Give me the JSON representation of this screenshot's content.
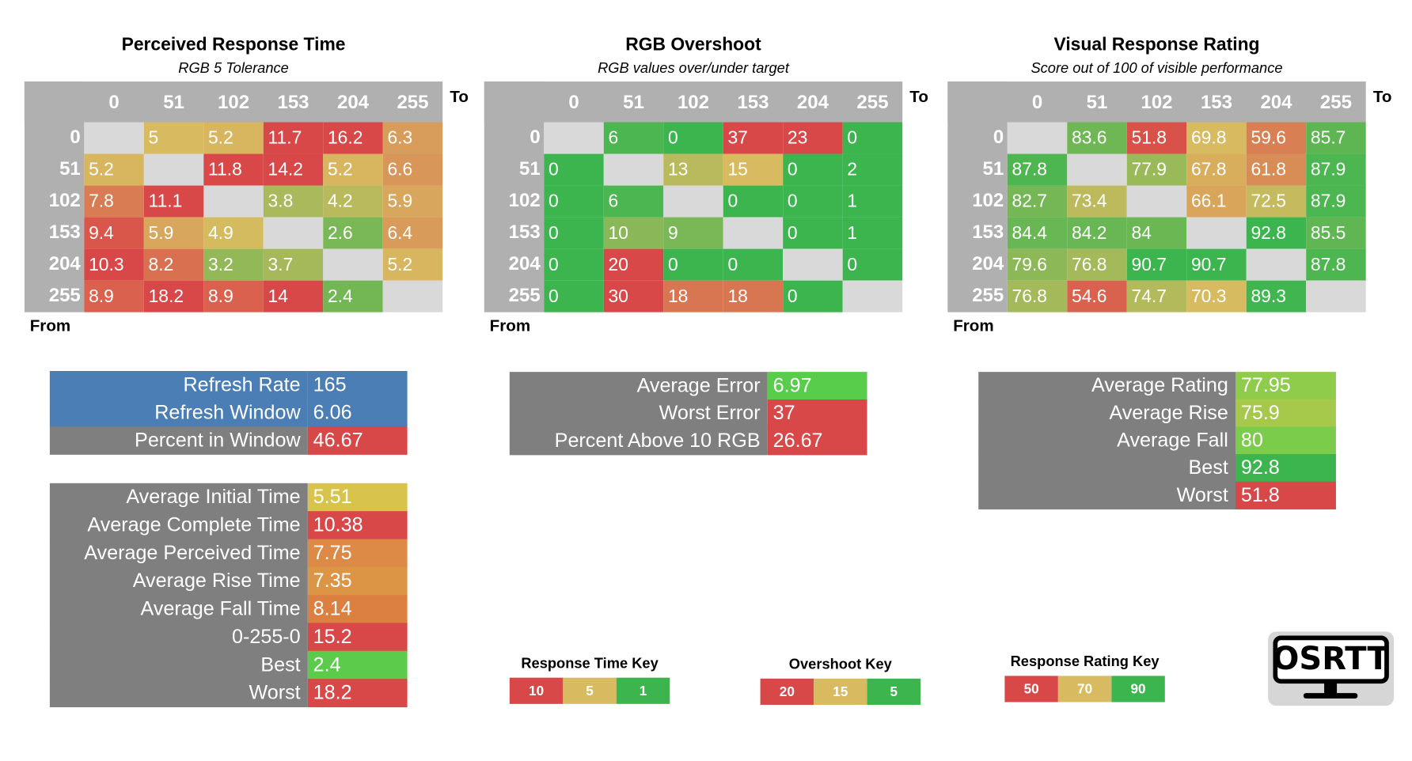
{
  "heatmaps": [
    {
      "title": "Perceived Response Time",
      "subtitle": "RGB 5 Tolerance",
      "to_label": "To",
      "from_label": "From",
      "columns": [
        0,
        51,
        102,
        153,
        204,
        255
      ],
      "row_labels": [
        0,
        51,
        102,
        153,
        204,
        255
      ],
      "values": [
        [
          null,
          5,
          5.2,
          11.7,
          16.2,
          6.3
        ],
        [
          5.2,
          null,
          11.8,
          14.2,
          5.2,
          6.6
        ],
        [
          7.8,
          11.1,
          null,
          3.8,
          4.2,
          5.9
        ],
        [
          9.4,
          5.9,
          4.9,
          null,
          2.6,
          6.4
        ],
        [
          10.3,
          8.2,
          3.2,
          3.7,
          null,
          5.2
        ],
        [
          8.9,
          18.2,
          8.9,
          14,
          2.4,
          null
        ]
      ],
      "key": {
        "title": "Response Time Key",
        "stops": [
          {
            "value": 10,
            "color": "#d94848"
          },
          {
            "value": 5,
            "color": "#d8bb60"
          },
          {
            "value": 1,
            "color": "#3cb54f"
          }
        ]
      }
    },
    {
      "title": "RGB Overshoot",
      "subtitle": "RGB values over/under target",
      "to_label": "To",
      "from_label": "From",
      "columns": [
        0,
        51,
        102,
        153,
        204,
        255
      ],
      "row_labels": [
        0,
        51,
        102,
        153,
        204,
        255
      ],
      "values": [
        [
          null,
          6,
          0,
          37,
          23,
          0
        ],
        [
          0,
          null,
          13,
          15,
          0,
          2
        ],
        [
          0,
          6,
          null,
          0,
          0,
          1
        ],
        [
          0,
          10,
          9,
          null,
          0,
          1
        ],
        [
          0,
          20,
          0,
          0,
          null,
          0
        ],
        [
          0,
          30,
          18,
          18,
          0,
          null
        ]
      ],
      "key": {
        "title": "Overshoot Key",
        "stops": [
          {
            "value": 20,
            "color": "#d94848"
          },
          {
            "value": 15,
            "color": "#d8bb60"
          },
          {
            "value": 5,
            "color": "#3cb54f"
          }
        ]
      }
    },
    {
      "title": "Visual Response Rating",
      "subtitle": "Score out of 100 of visible performance",
      "to_label": "To",
      "from_label": "From",
      "columns": [
        0,
        51,
        102,
        153,
        204,
        255
      ],
      "row_labels": [
        0,
        51,
        102,
        153,
        204,
        255
      ],
      "values": [
        [
          null,
          83.6,
          51.8,
          69.8,
          59.6,
          85.7
        ],
        [
          87.8,
          null,
          77.9,
          67.8,
          61.8,
          87.9
        ],
        [
          82.7,
          73.4,
          null,
          66.1,
          72.5,
          87.9
        ],
        [
          84.4,
          84.2,
          84,
          null,
          92.8,
          85.5
        ],
        [
          79.6,
          76.8,
          90.7,
          90.7,
          null,
          87.8
        ],
        [
          76.8,
          54.6,
          74.7,
          70.3,
          89.3,
          null
        ]
      ],
      "key": {
        "title": "Response Rating Key",
        "stops": [
          {
            "value": 50,
            "color": "#d94848"
          },
          {
            "value": 70,
            "color": "#d8bb60"
          },
          {
            "value": 90,
            "color": "#3cb54f"
          }
        ]
      }
    }
  ],
  "summaries": [
    {
      "rows": [
        {
          "label": "Refresh Rate",
          "value": 165,
          "color": "#4a7eb5",
          "label_color": "#4a7eb5"
        },
        {
          "label": "Refresh Window",
          "value": 6.06,
          "color": "#4a7eb5",
          "label_color": "#4a7eb5"
        },
        {
          "label": "Percent in Window",
          "value": 46.67,
          "color": "#d94848"
        }
      ]
    },
    {
      "rows": [
        {
          "label": "Average Initial Time",
          "value": 5.51,
          "color": "#d8c44c"
        },
        {
          "label": "Average Complete Time",
          "value": 10.38,
          "color": "#d94848"
        },
        {
          "label": "Average Perceived Time",
          "value": 7.75,
          "color": "#dc8a45"
        },
        {
          "label": "Average Rise Time",
          "value": 7.35,
          "color": "#dc9445"
        },
        {
          "label": "Average Fall Time",
          "value": 8.14,
          "color": "#dc8042"
        },
        {
          "label": "0-255-0",
          "value": 15.2,
          "color": "#d94848"
        },
        {
          "label": "Best",
          "value": 2.4,
          "color": "#5ccb4b"
        },
        {
          "label": "Worst",
          "value": 18.2,
          "color": "#d94848"
        }
      ]
    },
    {
      "rows": [
        {
          "label": "Average Error",
          "value": 6.97,
          "color": "#58cc4b"
        },
        {
          "label": "Worst Error",
          "value": 37,
          "color": "#d94848"
        },
        {
          "label": "Percent Above 10 RGB",
          "value": 26.67,
          "color": "#d94848"
        }
      ]
    },
    {
      "rows": [
        {
          "label": "Average Rating",
          "value": 77.95,
          "color": "#8fcc4b"
        },
        {
          "label": "Average Rise",
          "value": 75.9,
          "color": "#a6c94b"
        },
        {
          "label": "Average Fall",
          "value": 80,
          "color": "#7ccc4b"
        },
        {
          "label": "Best",
          "value": 92.8,
          "color": "#3cb54f"
        },
        {
          "label": "Worst",
          "value": 51.8,
          "color": "#d94848"
        }
      ]
    }
  ],
  "logo": {
    "text": "OSRTT"
  }
}
